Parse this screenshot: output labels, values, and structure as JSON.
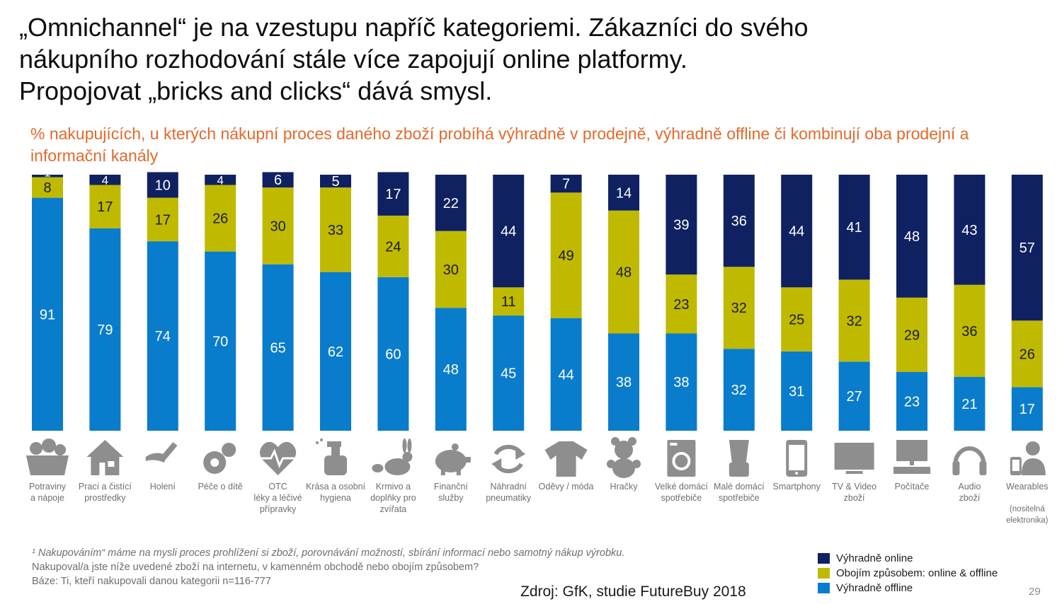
{
  "title_lines": [
    "„Omnichannel“ je na vzestupu napříč kategoriemi. Zákazníci do svého",
    "nákupního rozhodování stále více zapojují online platformy.",
    "Propojovat „bricks and clicks“ dává smysl."
  ],
  "subtitle": "% nakupujících, u kterých nákupní proces daného zboží probíhá výhradně v prodejně, výhradně offline či kombinují oba prodejní a informační kanály",
  "colors": {
    "online": "#0f2161",
    "both": "#bfba00",
    "offline": "#0a7ccc",
    "icon": "#8e8e8e"
  },
  "chart_data": {
    "type": "bar",
    "stacked": true,
    "title": "% nakupujících, u kterých nákupní proces daného zboží probíhá výhradně v prodejně, výhradně offline či kombinují oba prodejní a informační kanály",
    "categories": [
      [
        "Potraviny",
        "a nápoje"
      ],
      [
        "Prací a čistící",
        "prostředky"
      ],
      [
        "Holení"
      ],
      [
        "Péče o dítě"
      ],
      [
        "OTC",
        "léky a léčivé",
        "přípravky"
      ],
      [
        "Krása a osobní",
        "hygiena"
      ],
      [
        "Krmivo a",
        "doplňky pro",
        "zvířata"
      ],
      [
        "Finanční",
        "služby"
      ],
      [
        "Náhradní",
        "pneumatiky"
      ],
      [
        "Oděvy / móda"
      ],
      [
        "Hračky"
      ],
      [
        "Velké domácí",
        "spotřebiče"
      ],
      [
        "Malé domácí",
        "spotřebiče"
      ],
      [
        "Smartphony"
      ],
      [
        "TV & Video",
        "zboží"
      ],
      [
        "Počítače"
      ],
      [
        "Audio",
        "zboží"
      ],
      [
        "Wearables",
        "",
        "(nositelná",
        "elektronika)"
      ]
    ],
    "series": [
      {
        "name": "Výhradně offline",
        "key": "offline",
        "values": [
          91,
          79,
          74,
          70,
          65,
          62,
          60,
          48,
          45,
          44,
          38,
          38,
          32,
          31,
          27,
          23,
          21,
          17
        ]
      },
      {
        "name": "Obojím způsobem: online & offline",
        "key": "both",
        "values": [
          8,
          17,
          17,
          26,
          30,
          33,
          24,
          30,
          11,
          49,
          48,
          23,
          32,
          25,
          32,
          29,
          36,
          26
        ]
      },
      {
        "name": "Výhradně online",
        "key": "online",
        "values": [
          1,
          4,
          10,
          4,
          6,
          5,
          17,
          22,
          44,
          7,
          14,
          39,
          36,
          44,
          41,
          48,
          43,
          57
        ]
      }
    ],
    "ylim": [
      0,
      100
    ],
    "xlabel": "",
    "ylabel": ""
  },
  "icons": [
    "food-basket-icon",
    "house-icon",
    "razor-icon",
    "pacifier-icon",
    "heart-pulse-icon",
    "spray-bottle-icon",
    "rabbit-bird-icon",
    "piggy-bank-icon",
    "recycle-arrows-icon",
    "tshirt-icon",
    "teddy-bear-icon",
    "washing-machine-icon",
    "blender-icon",
    "smartphone-icon",
    "tv-icon",
    "computer-icon",
    "headphones-icon",
    "wearable-person-icon"
  ],
  "legend": [
    {
      "label": "Výhradně online",
      "key": "online"
    },
    {
      "label": "Obojím způsobem: online & offline",
      "key": "both"
    },
    {
      "label": "Výhradně offline",
      "key": "offline"
    }
  ],
  "footnote": {
    "line1": "¹ Nakupováním“ máme na mysli proces prohlížení si zboží, porovnávání možností, sbírání informací nebo samotný nákup výrobku.",
    "line2": "Nakupoval/a jste níže uvedené zboží na internetu, v kamenném obchodě nebo obojím způsobem?",
    "line3": "Báze: Ti, kteří nakupovali danou kategorii n=116-777"
  },
  "source": "Zdroj: GfK, studie  FutureBuy 2018",
  "page_number": "29"
}
